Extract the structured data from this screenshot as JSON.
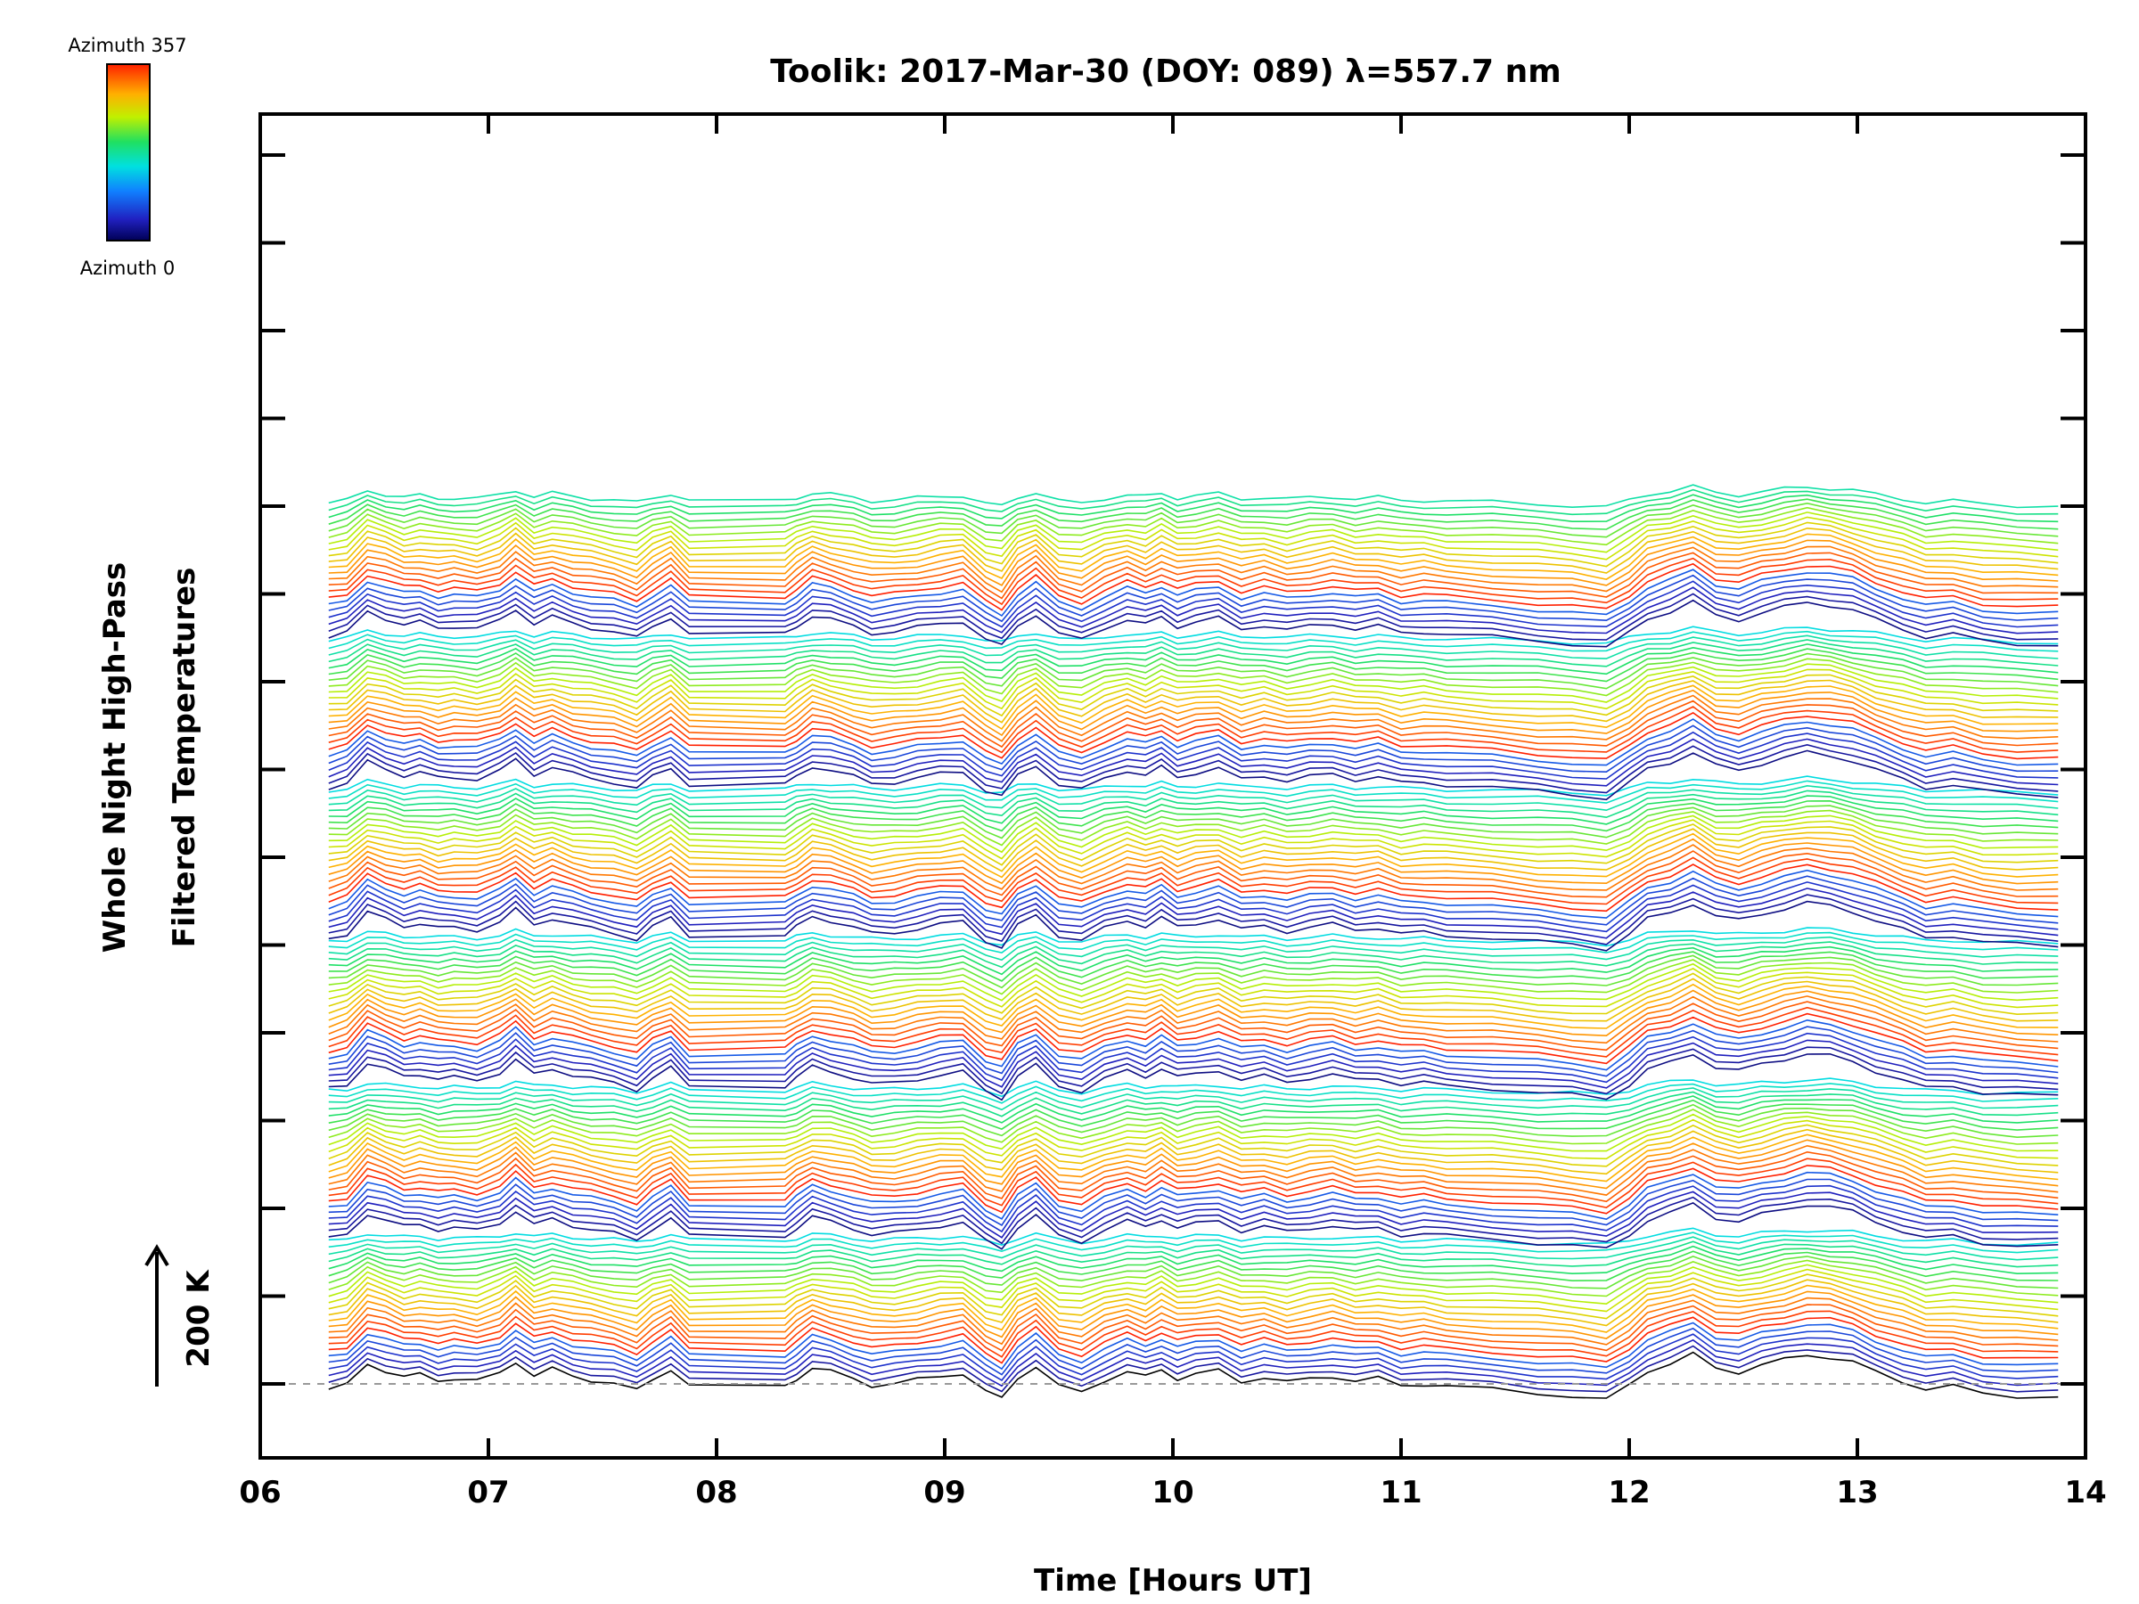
{
  "chart_data": {
    "type": "line",
    "title": "Toolik: 2017-Mar-30 (DOY: 089) λ=557.7 nm",
    "xlabel": "Time [Hours UT]",
    "ylabel_line1": "Whole Night High-Pass",
    "ylabel_line2": "Filtered Temperatures",
    "xlim": [
      6,
      14
    ],
    "x_ticks": [
      "06",
      "07",
      "08",
      "09",
      "10",
      "11",
      "12",
      "13",
      "14"
    ],
    "scale_bar": {
      "label": "200 K",
      "value_k": 200
    },
    "colorbar": {
      "label_top": "Azimuth 357",
      "label_bottom": "Azimuth 0",
      "min_azimuth": 0,
      "max_azimuth": 357,
      "colormap": "rainbow"
    },
    "series_description": "Stacked keogram-like traces of high-pass filtered temperature, one trace per azimuth bin, each offset vertically; data gap between ~07.9 and ~08.3 UT",
    "time_range_hours": [
      6.3,
      13.88
    ],
    "trace_count": 142,
    "trace_offset_k": 14,
    "band_period": 24,
    "baseline_trace_offset_ticks": 0,
    "common_signal": {
      "x": [
        6.3,
        6.38,
        6.47,
        6.55,
        6.63,
        6.7,
        6.78,
        6.85,
        6.95,
        7.05,
        7.12,
        7.2,
        7.28,
        7.37,
        7.45,
        7.55,
        7.65,
        7.72,
        7.8,
        7.88,
        8.3,
        8.35,
        8.42,
        8.5,
        8.6,
        8.68,
        8.78,
        8.88,
        8.98,
        9.08,
        9.18,
        9.25,
        9.32,
        9.4,
        9.5,
        9.6,
        9.7,
        9.8,
        9.88,
        9.95,
        10.02,
        10.1,
        10.2,
        10.3,
        10.4,
        10.5,
        10.6,
        10.7,
        10.8,
        10.9,
        11.0,
        11.1,
        11.2,
        11.4,
        11.6,
        11.75,
        11.9,
        12.0,
        12.08,
        12.18,
        12.28,
        12.38,
        12.48,
        12.58,
        12.68,
        12.78,
        12.88,
        12.98,
        13.08,
        13.2,
        13.3,
        13.42,
        13.55,
        13.7,
        13.88
      ],
      "y_k": [
        -8,
        -2,
        30,
        20,
        10,
        14,
        6,
        8,
        4,
        16,
        34,
        12,
        22,
        12,
        6,
        0,
        -10,
        8,
        22,
        -4,
        -4,
        8,
        24,
        18,
        8,
        -2,
        0,
        6,
        12,
        16,
        -12,
        -22,
        10,
        26,
        -4,
        -12,
        6,
        18,
        10,
        22,
        8,
        14,
        20,
        4,
        10,
        2,
        8,
        12,
        4,
        8,
        -2,
        0,
        -4,
        -8,
        -14,
        -18,
        -24,
        -2,
        20,
        30,
        44,
        24,
        18,
        28,
        36,
        44,
        40,
        32,
        18,
        4,
        -8,
        -4,
        -14,
        -18,
        -20
      ]
    }
  }
}
